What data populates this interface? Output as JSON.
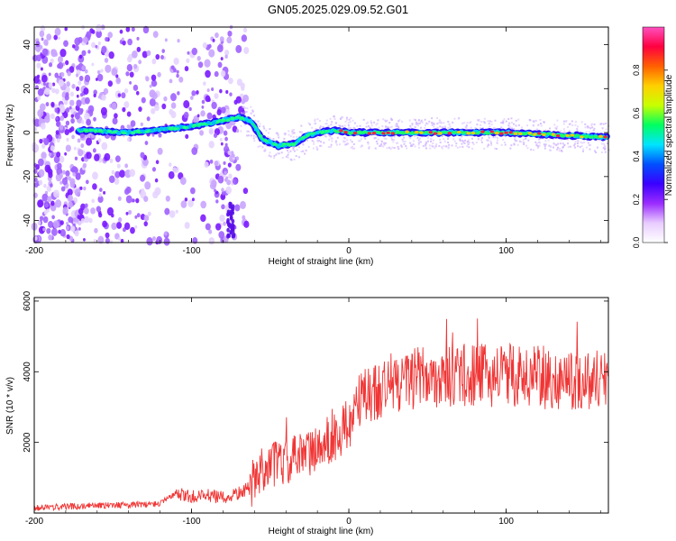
{
  "title": "GN05.2025.029.09.52.G01",
  "chart_data": [
    {
      "type": "heatmap",
      "xlabel": "Height of straight line (km)",
      "ylabel": "Frequency (Hz)",
      "xlim": [
        -200,
        165
      ],
      "ylim": [
        -50,
        48
      ],
      "xticks": [
        -200,
        -100,
        0,
        100
      ],
      "yticks": [
        -40,
        -20,
        0,
        20,
        40
      ],
      "colorbar": {
        "label": "Normalized spectral amplitude",
        "range": [
          0,
          1
        ],
        "ticks": [
          0.0,
          0.2,
          0.4,
          0.6,
          0.8
        ],
        "colors": [
          "#ffffff",
          "#e8ccff",
          "#9a2cff",
          "#3a00ff",
          "#0050ff",
          "#00e5ff",
          "#00ff60",
          "#c8ff00",
          "#ffd000",
          "#ff6000",
          "#ff0040",
          "#ff50c0"
        ]
      },
      "ridge": [
        {
          "x": -200,
          "y": 1
        },
        {
          "x": -170,
          "y": 1
        },
        {
          "x": -140,
          "y": 0
        },
        {
          "x": -110,
          "y": 2
        },
        {
          "x": -90,
          "y": 4
        },
        {
          "x": -70,
          "y": 7
        },
        {
          "x": -62,
          "y": 5
        },
        {
          "x": -55,
          "y": -3
        },
        {
          "x": -45,
          "y": -6
        },
        {
          "x": -35,
          "y": -5
        },
        {
          "x": -25,
          "y": -1
        },
        {
          "x": -10,
          "y": 1
        },
        {
          "x": 0,
          "y": 0
        },
        {
          "x": 30,
          "y": 0
        },
        {
          "x": 70,
          "y": 0
        },
        {
          "x": 100,
          "y": 0
        },
        {
          "x": 130,
          "y": -1
        },
        {
          "x": 165,
          "y": -2
        }
      ]
    },
    {
      "type": "line",
      "xlabel": "Height of straight line (km)",
      "ylabel": "SNR (10 * v/v)",
      "xlim": [
        -200,
        165
      ],
      "ylim": [
        0,
        6100
      ],
      "xticks": [
        -200,
        -100,
        0,
        100
      ],
      "yticks": [
        2000,
        4000,
        6000
      ],
      "color": "#f03535",
      "series": [
        {
          "x": [
            -200,
            -180,
            -160,
            -140,
            -120,
            -110,
            -100,
            -90,
            -80,
            -70,
            -63,
            -55,
            -45,
            -35,
            -25,
            -15,
            -5,
            0,
            10,
            20,
            30,
            40,
            60,
            80,
            100,
            120,
            140,
            165
          ],
          "y": [
            150,
            180,
            220,
            230,
            260,
            550,
            450,
            500,
            420,
            560,
            700,
            1300,
            1400,
            1500,
            1700,
            2000,
            2300,
            2600,
            3300,
            3500,
            3700,
            3800,
            3900,
            3900,
            3900,
            3850,
            3800,
            3800
          ]
        }
      ]
    }
  ]
}
